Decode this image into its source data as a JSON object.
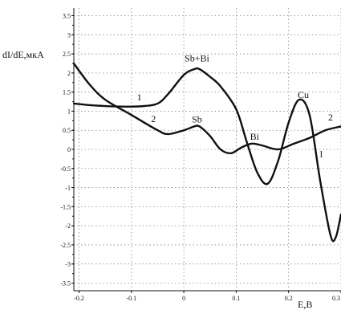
{
  "chart_data": {
    "type": "line",
    "xlabel": "E,B",
    "ylabel": "dI/dE,мкА",
    "xlim": [
      -0.21,
      0.3
    ],
    "ylim": [
      -3.7,
      3.7
    ],
    "x_ticks": [
      "-0.2",
      "-0.1",
      "0",
      "0.1",
      "0.2",
      "0.3"
    ],
    "y_ticks": [
      "3.5",
      "3",
      "2.5",
      "2",
      "1.5",
      "1",
      "0.5",
      "0",
      "-0.5",
      "-1",
      "-1.5",
      "-2",
      "-2.5",
      "-3",
      "-3.5"
    ],
    "grid": true,
    "series": [
      {
        "name": "1",
        "x": [
          -0.21,
          -0.17,
          -0.12,
          -0.08,
          -0.05,
          -0.03,
          0.0,
          0.02,
          0.03,
          0.05,
          0.07,
          0.1,
          0.12,
          0.14,
          0.16,
          0.18,
          0.2,
          0.22,
          0.24,
          0.26,
          0.28,
          0.29,
          0.3
        ],
        "y": [
          1.2,
          1.15,
          1.12,
          1.13,
          1.2,
          1.45,
          1.95,
          2.1,
          2.1,
          1.9,
          1.65,
          1.05,
          0.2,
          -0.6,
          -0.9,
          -0.3,
          0.7,
          1.3,
          0.9,
          -0.8,
          -2.25,
          -2.3,
          -1.7
        ]
      },
      {
        "name": "2",
        "x": [
          -0.21,
          -0.18,
          -0.15,
          -0.1,
          -0.05,
          -0.03,
          0.0,
          0.02,
          0.03,
          0.05,
          0.07,
          0.09,
          0.11,
          0.13,
          0.15,
          0.18,
          0.21,
          0.24,
          0.27,
          0.3
        ],
        "y": [
          2.25,
          1.7,
          1.3,
          0.9,
          0.5,
          0.4,
          0.5,
          0.6,
          0.6,
          0.35,
          0.0,
          -0.1,
          0.05,
          0.15,
          0.1,
          0.0,
          0.15,
          0.3,
          0.5,
          0.6
        ]
      }
    ],
    "annotations": [
      {
        "text": "Sb+Bi",
        "x": 0.025,
        "y": 2.3
      },
      {
        "text": "Sb",
        "x": 0.025,
        "y": 0.7
      },
      {
        "text": "Bi",
        "x": 0.135,
        "y": 0.25
      },
      {
        "text": "Cu",
        "x": 0.228,
        "y": 1.35
      },
      {
        "text": "1",
        "x": -0.085,
        "y": 1.28
      },
      {
        "text": "2",
        "x": -0.058,
        "y": 0.72
      },
      {
        "text": "1",
        "x": 0.262,
        "y": -0.2
      },
      {
        "text": "2",
        "x": 0.28,
        "y": 0.76
      }
    ]
  }
}
